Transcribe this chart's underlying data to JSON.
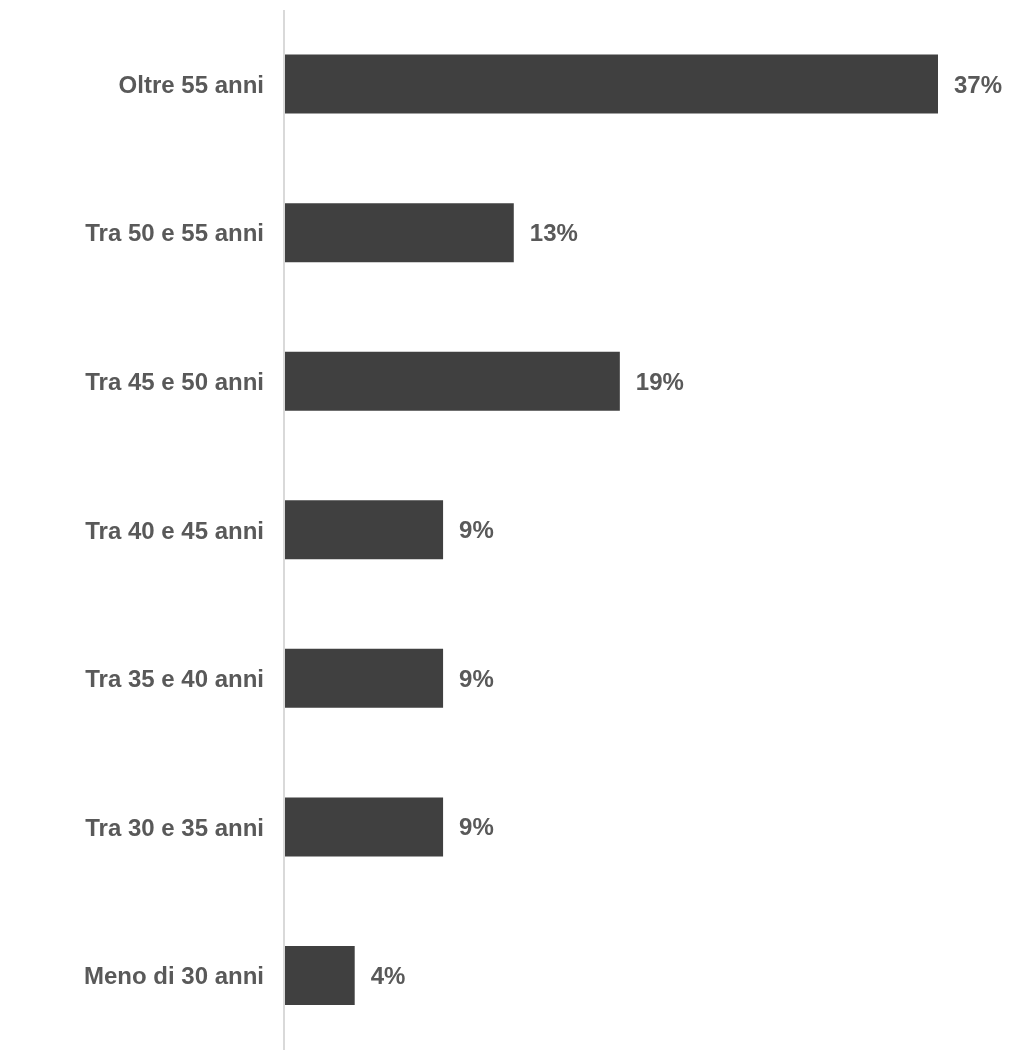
{
  "chart_data": {
    "type": "bar",
    "orientation": "horizontal",
    "categories": [
      "Oltre 55 anni",
      "Tra 50 e 55 anni",
      "Tra 45 e 50 anni",
      "Tra 40 e 45 anni",
      "Tra 35 e 40 anni",
      "Tra 30 e 35 anni",
      "Meno di 30 anni"
    ],
    "values": [
      37,
      13,
      19,
      9,
      9,
      9,
      4
    ],
    "value_labels": [
      "37%",
      "13%",
      "19%",
      "9%",
      "9%",
      "9%",
      "4%"
    ],
    "color": "#404040",
    "grid": false,
    "legend": false
  }
}
